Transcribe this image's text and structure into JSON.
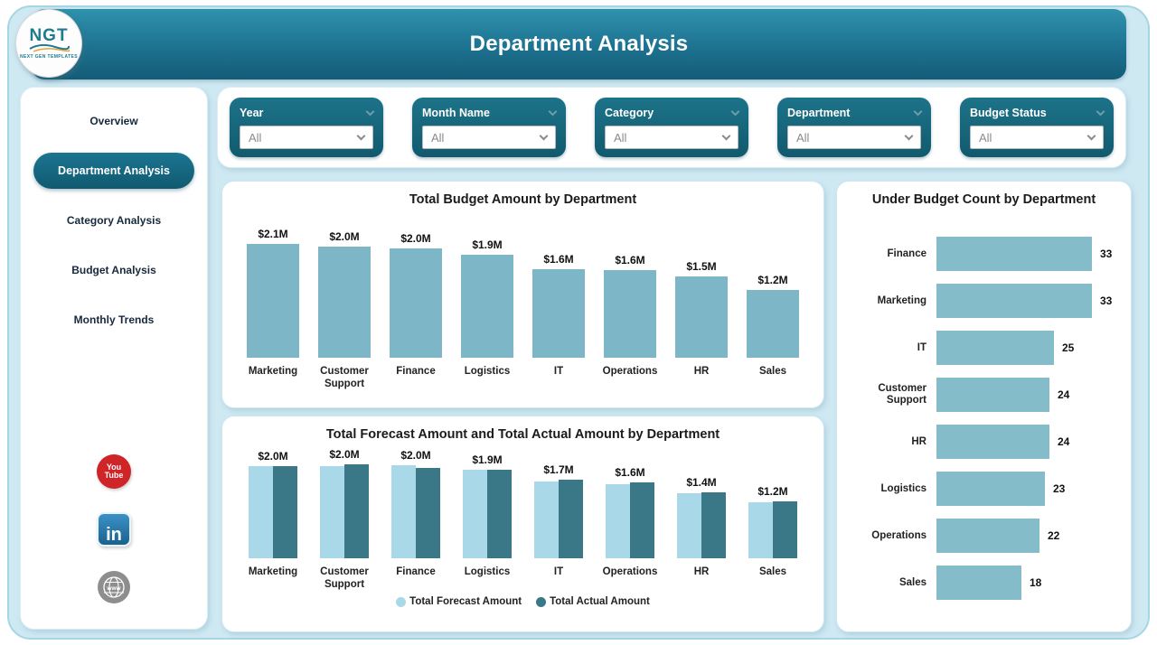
{
  "header": {
    "title": "Department Analysis",
    "logo": {
      "text": "NGT",
      "subtext": "NEXT GEN TEMPLATES"
    }
  },
  "sidebar": {
    "items": [
      {
        "label": "Overview",
        "active": false
      },
      {
        "label": "Department Analysis",
        "active": true
      },
      {
        "label": "Category Analysis",
        "active": false
      },
      {
        "label": "Budget Analysis",
        "active": false
      },
      {
        "label": "Monthly Trends",
        "active": false
      }
    ],
    "social": [
      {
        "name": "youtube",
        "lines": [
          "You",
          "Tube"
        ]
      },
      {
        "name": "linkedin",
        "label": "in"
      },
      {
        "name": "website",
        "label": "www"
      }
    ]
  },
  "filters": [
    {
      "label": "Year",
      "value": "All"
    },
    {
      "label": "Month Name",
      "value": "All"
    },
    {
      "label": "Category",
      "value": "All"
    },
    {
      "label": "Department",
      "value": "All"
    },
    {
      "label": "Budget Status",
      "value": "All"
    }
  ],
  "chart_data": [
    {
      "id": "budget",
      "type": "bar",
      "orientation": "vertical",
      "title": "Total Budget Amount by Department",
      "categories": [
        "Marketing",
        "Customer Support",
        "Finance",
        "Logistics",
        "IT",
        "Operations",
        "HR",
        "Sales"
      ],
      "values": [
        2.1,
        2.05,
        2.02,
        1.9,
        1.63,
        1.62,
        1.5,
        1.25
      ],
      "labels": [
        "$2.1M",
        "$2.0M",
        "$2.0M",
        "$1.9M",
        "$1.6M",
        "$1.6M",
        "$1.5M",
        "$1.2M"
      ],
      "unit": "M USD",
      "ylim": [
        0,
        2.2
      ],
      "grid": false,
      "bar_color": "#7db6c6"
    },
    {
      "id": "forecast_actual",
      "type": "bar",
      "orientation": "vertical",
      "title": "Total Forecast Amount and Total Actual Amount by Department",
      "categories": [
        "Marketing",
        "Customer Support",
        "Finance",
        "Logistics",
        "IT",
        "Operations",
        "HR",
        "Sales"
      ],
      "series": [
        {
          "name": "Total Forecast Amount",
          "color": "#a9d8e8",
          "values": [
            2.0,
            2.0,
            2.02,
            1.92,
            1.67,
            1.61,
            1.41,
            1.21
          ]
        },
        {
          "name": "Total Actual Amount",
          "color": "#3a7787",
          "values": [
            2.0,
            2.03,
            1.97,
            1.93,
            1.7,
            1.64,
            1.43,
            1.23
          ]
        }
      ],
      "labels": [
        "$2.0M",
        "$2.0M",
        "$2.0M",
        "$1.9M",
        "$1.7M",
        "$1.6M",
        "$1.4M",
        "$1.2M"
      ],
      "unit": "M USD",
      "ylim": [
        0,
        2.2
      ],
      "grid": false,
      "legend_position": "bottom"
    },
    {
      "id": "under_budget",
      "type": "bar",
      "orientation": "horizontal",
      "title": "Under Budget Count by Department",
      "categories": [
        "Finance",
        "Marketing",
        "IT",
        "Customer Support",
        "HR",
        "Logistics",
        "Operations",
        "Sales"
      ],
      "values": [
        33,
        33,
        25,
        24,
        24,
        23,
        22,
        18
      ],
      "xlim": [
        0,
        34
      ],
      "grid": false,
      "bar_color": "#85bcca"
    }
  ],
  "colors": {
    "header_teal_top": "#2f92ad",
    "header_teal_bottom": "#135c77",
    "filter_teal_top": "#1d7389",
    "filter_teal_bottom": "#115a6e",
    "budget_bar": "#7db6c6",
    "forecast_bar": "#a9d8e8",
    "actual_bar": "#3a7787",
    "count_bar": "#85bcca",
    "frame_bg": "#cfe9f3",
    "youtube_red": "#cf2428",
    "linkedin_blue": "#2d7fb8",
    "website_gray": "#8e8e8e"
  }
}
